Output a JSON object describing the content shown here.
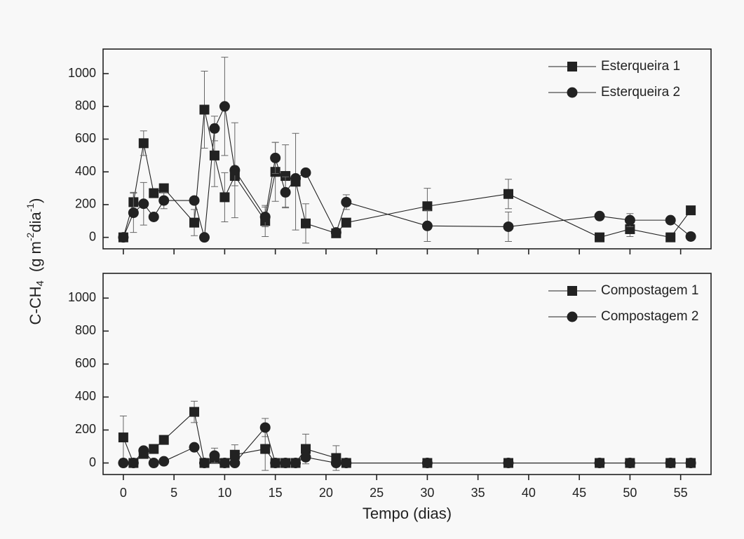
{
  "chart_data": [
    {
      "type": "line",
      "ylabel": [
        "C-CH",
        "4",
        "(g m",
        "-2",
        "dia",
        "-1",
        ")"
      ],
      "xlim": [
        -2,
        58
      ],
      "xticks": [
        0,
        5,
        10,
        15,
        20,
        25,
        30,
        35,
        40,
        45,
        50,
        55
      ],
      "ylim": [
        -70,
        1150
      ],
      "yticks": [
        0,
        200,
        400,
        600,
        800,
        1000
      ],
      "legend": "top-right",
      "x": [
        0,
        1,
        2,
        3,
        4,
        7,
        8,
        9,
        10,
        11,
        14,
        15,
        16,
        17,
        18,
        21,
        22,
        30,
        38,
        47,
        50,
        54,
        56
      ],
      "series": [
        {
          "name": "Esterqueira 1",
          "color": "#222222",
          "marker": "square",
          "values": [
            0,
            215,
            575,
            270,
            300,
            90,
            780,
            500,
            245,
            375,
            100,
            400,
            375,
            340,
            85,
            25,
            90,
            190,
            265,
            0,
            50,
            0,
            165
          ],
          "errors": [
            null,
            60,
            75,
            null,
            null,
            80,
            235,
            190,
            150,
            60,
            95,
            180,
            190,
            295,
            120,
            null,
            null,
            110,
            90,
            null,
            45,
            null,
            null
          ]
        },
        {
          "name": "Esterqueira 2",
          "color": "#222222",
          "marker": "circle",
          "values": [
            0,
            150,
            205,
            125,
            225,
            225,
            0,
            665,
            800,
            410,
            125,
            485,
            275,
            360,
            395,
            30,
            215,
            70,
            65,
            130,
            105,
            105,
            5
          ],
          "errors": [
            null,
            120,
            130,
            null,
            50,
            null,
            null,
            75,
            300,
            290,
            60,
            95,
            95,
            null,
            null,
            20,
            45,
            95,
            90,
            null,
            40,
            null,
            null
          ]
        }
      ]
    },
    {
      "type": "line",
      "xlabel": "Tempo (dias)",
      "xlim": [
        -2,
        58
      ],
      "xticks": [
        0,
        5,
        10,
        15,
        20,
        25,
        30,
        35,
        40,
        45,
        50,
        55
      ],
      "ylim": [
        -70,
        1150
      ],
      "yticks": [
        0,
        200,
        400,
        600,
        800,
        1000
      ],
      "legend": "top-right",
      "x": [
        0,
        1,
        2,
        3,
        4,
        7,
        8,
        9,
        10,
        11,
        14,
        15,
        16,
        17,
        18,
        21,
        22,
        30,
        38,
        47,
        50,
        54,
        56
      ],
      "series": [
        {
          "name": "Compostagem 1",
          "color": "#222222",
          "marker": "square",
          "values": [
            155,
            0,
            55,
            85,
            140,
            310,
            0,
            25,
            0,
            50,
            85,
            0,
            0,
            0,
            85,
            30,
            0,
            0,
            0,
            0,
            0,
            0,
            0
          ],
          "errors": [
            130,
            null,
            20,
            null,
            null,
            65,
            null,
            null,
            null,
            60,
            130,
            null,
            null,
            null,
            90,
            75,
            null,
            null,
            null,
            null,
            null,
            null,
            null
          ]
        },
        {
          "name": "Compostagem 2",
          "color": "#222222",
          "marker": "circle",
          "values": [
            0,
            0,
            75,
            0,
            10,
            95,
            0,
            45,
            0,
            0,
            215,
            0,
            0,
            0,
            35,
            0,
            0,
            0,
            0,
            0,
            0,
            0,
            0
          ],
          "errors": [
            null,
            null,
            20,
            null,
            null,
            null,
            null,
            45,
            null,
            null,
            55,
            null,
            null,
            null,
            null,
            null,
            null,
            null,
            null,
            null,
            null,
            null,
            null
          ]
        }
      ]
    }
  ]
}
